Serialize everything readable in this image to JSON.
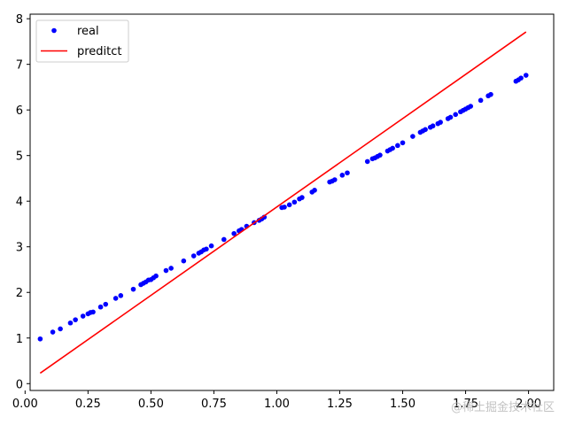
{
  "chart_data": {
    "type": "scatter",
    "title": "",
    "xlabel": "",
    "ylabel": "",
    "xlim": [
      0.02,
      2.1
    ],
    "ylim": [
      -0.15,
      8.1
    ],
    "xticks": [
      0.0,
      0.25,
      0.5,
      0.75,
      1.0,
      1.25,
      1.5,
      1.75,
      2.0
    ],
    "xtick_labels": [
      "0.00",
      "0.25",
      "0.50",
      "0.75",
      "1.00",
      "1.25",
      "1.50",
      "1.75",
      "2.00"
    ],
    "yticks": [
      0,
      1,
      2,
      3,
      4,
      5,
      6,
      7,
      8
    ],
    "ytick_labels": [
      "0",
      "1",
      "2",
      "3",
      "4",
      "5",
      "6",
      "7",
      "8"
    ],
    "grid": false,
    "legend": "top-left",
    "series": [
      {
        "name": "real",
        "kind": "scatter",
        "color": "#0000ff",
        "x": [
          0.06,
          0.11,
          0.14,
          0.18,
          0.2,
          0.23,
          0.25,
          0.26,
          0.27,
          0.3,
          0.32,
          0.36,
          0.38,
          0.43,
          0.46,
          0.47,
          0.48,
          0.49,
          0.5,
          0.51,
          0.52,
          0.56,
          0.58,
          0.63,
          0.67,
          0.69,
          0.7,
          0.71,
          0.72,
          0.74,
          0.79,
          0.83,
          0.85,
          0.86,
          0.88,
          0.91,
          0.93,
          0.94,
          0.95,
          1.02,
          1.03,
          1.05,
          1.07,
          1.09,
          1.1,
          1.14,
          1.15,
          1.21,
          1.22,
          1.23,
          1.26,
          1.28,
          1.36,
          1.38,
          1.39,
          1.4,
          1.41,
          1.44,
          1.45,
          1.46,
          1.48,
          1.5,
          1.54,
          1.57,
          1.58,
          1.59,
          1.61,
          1.62,
          1.64,
          1.65,
          1.68,
          1.69,
          1.71,
          1.73,
          1.74,
          1.75,
          1.76,
          1.77,
          1.81,
          1.84,
          1.85,
          1.95,
          1.96,
          1.97,
          1.99
        ],
        "y": [
          0.98,
          1.13,
          1.2,
          1.33,
          1.4,
          1.48,
          1.53,
          1.56,
          1.57,
          1.68,
          1.74,
          1.87,
          1.93,
          2.07,
          2.17,
          2.2,
          2.23,
          2.27,
          2.28,
          2.32,
          2.36,
          2.48,
          2.53,
          2.69,
          2.8,
          2.86,
          2.89,
          2.93,
          2.95,
          3.02,
          3.16,
          3.29,
          3.35,
          3.38,
          3.45,
          3.53,
          3.58,
          3.61,
          3.65,
          3.86,
          3.87,
          3.92,
          3.98,
          4.05,
          4.08,
          4.2,
          4.24,
          4.42,
          4.44,
          4.47,
          4.57,
          4.62,
          4.87,
          4.93,
          4.95,
          4.98,
          5.01,
          5.1,
          5.13,
          5.16,
          5.22,
          5.28,
          5.42,
          5.51,
          5.54,
          5.57,
          5.62,
          5.65,
          5.7,
          5.73,
          5.81,
          5.84,
          5.9,
          5.96,
          5.99,
          6.02,
          6.05,
          6.08,
          6.21,
          6.31,
          6.34,
          6.63,
          6.66,
          6.7,
          6.76
        ]
      },
      {
        "name": "preditct",
        "kind": "line",
        "color": "#ff0000",
        "x": [
          0.06,
          1.99
        ],
        "y": [
          0.23,
          7.71
        ]
      }
    ]
  },
  "watermark": "@稀土掘金技术社区"
}
